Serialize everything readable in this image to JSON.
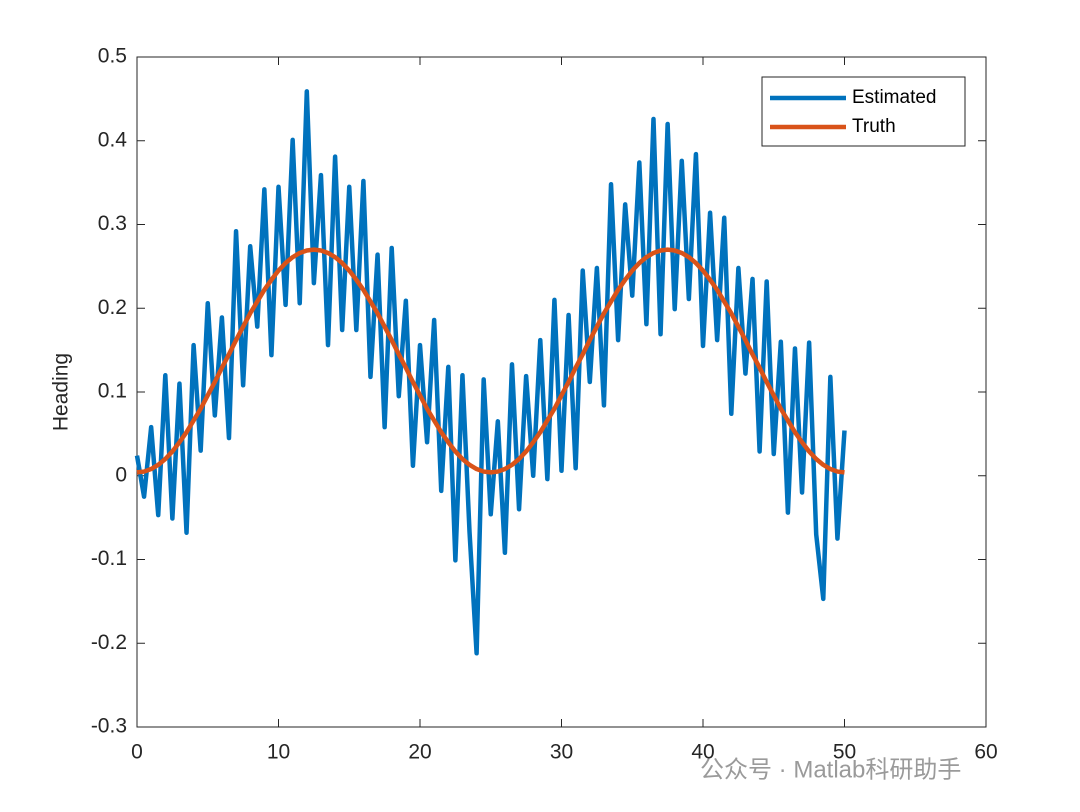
{
  "chart_data": {
    "type": "line",
    "y_label": "Heading",
    "watermark": "公众号 · Matlab科研助手",
    "x": [
      0,
      0.5,
      1,
      1.5,
      2,
      2.5,
      3,
      3.5,
      4,
      4.5,
      5,
      5.5,
      6,
      6.5,
      7,
      7.5,
      8,
      8.5,
      9,
      9.5,
      10,
      10.5,
      11,
      11.5,
      12,
      12.5,
      13,
      13.5,
      14,
      14.5,
      15,
      15.5,
      16,
      16.5,
      17,
      17.5,
      18,
      18.5,
      19,
      19.5,
      20,
      20.5,
      21,
      21.5,
      22,
      22.5,
      23,
      23.5,
      24,
      24.5,
      25,
      25.5,
      26,
      26.5,
      27,
      27.5,
      28,
      28.5,
      29,
      29.5,
      30,
      30.5,
      31,
      31.5,
      32,
      32.5,
      33,
      33.5,
      34,
      34.5,
      35,
      35.5,
      36,
      36.5,
      37,
      37.5,
      38,
      38.5,
      39,
      39.5,
      40,
      40.5,
      41,
      41.5,
      42,
      42.5,
      43,
      43.5,
      44,
      44.5,
      45,
      45.5,
      46,
      46.5,
      47,
      47.5,
      48,
      48.5,
      49,
      49.5,
      50
    ],
    "series": [
      {
        "name": "Estimated",
        "color": "#0072BD",
        "values": [
          0.024,
          -0.025,
          0.058,
          -0.047,
          0.12,
          -0.051,
          0.11,
          -0.068,
          0.156,
          0.03,
          0.206,
          0.072,
          0.189,
          0.045,
          0.292,
          0.108,
          0.274,
          0.178,
          0.342,
          0.144,
          0.345,
          0.204,
          0.401,
          0.206,
          0.459,
          0.23,
          0.359,
          0.156,
          0.381,
          0.174,
          0.345,
          0.174,
          0.352,
          0.118,
          0.264,
          0.058,
          0.272,
          0.095,
          0.209,
          0.012,
          0.156,
          0.04,
          0.186,
          -0.018,
          0.13,
          -0.101,
          0.12,
          -0.067,
          -0.212,
          0.115,
          -0.046,
          0.065,
          -0.092,
          0.133,
          -0.04,
          0.119,
          0,
          0.162,
          -0.004,
          0.21,
          0.006,
          0.192,
          0.009,
          0.245,
          0.112,
          0.248,
          0.084,
          0.348,
          0.162,
          0.324,
          0.215,
          0.374,
          0.181,
          0.426,
          0.169,
          0.42,
          0.199,
          0.376,
          0.211,
          0.384,
          0.155,
          0.314,
          0.162,
          0.308,
          0.074,
          0.248,
          0.122,
          0.235,
          0.029,
          0.232,
          0.026,
          0.16,
          -0.044,
          0.152,
          -0.02,
          0.159,
          -0.07,
          -0.147,
          0.118,
          -0.075,
          0.054
        ]
      },
      {
        "name": "Truth",
        "color": "#D95319",
        "values": [
          0.004,
          0.005,
          0.008,
          0.013,
          0.02,
          0.029,
          0.04,
          0.052,
          0.066,
          0.08,
          0.096,
          0.112,
          0.129,
          0.145,
          0.162,
          0.178,
          0.194,
          0.208,
          0.222,
          0.234,
          0.245,
          0.254,
          0.261,
          0.266,
          0.269,
          0.27,
          0.269,
          0.266,
          0.261,
          0.254,
          0.245,
          0.234,
          0.222,
          0.208,
          0.194,
          0.178,
          0.162,
          0.145,
          0.129,
          0.112,
          0.096,
          0.08,
          0.066,
          0.052,
          0.04,
          0.029,
          0.02,
          0.013,
          0.008,
          0.005,
          0.004,
          0.005,
          0.008,
          0.013,
          0.02,
          0.029,
          0.04,
          0.052,
          0.066,
          0.08,
          0.096,
          0.112,
          0.129,
          0.145,
          0.162,
          0.178,
          0.194,
          0.208,
          0.222,
          0.234,
          0.245,
          0.254,
          0.261,
          0.266,
          0.269,
          0.27,
          0.269,
          0.266,
          0.261,
          0.254,
          0.245,
          0.234,
          0.222,
          0.208,
          0.194,
          0.178,
          0.162,
          0.145,
          0.129,
          0.112,
          0.096,
          0.08,
          0.066,
          0.052,
          0.04,
          0.029,
          0.02,
          0.013,
          0.008,
          0.005,
          0.004
        ]
      }
    ],
    "xlim": [
      0,
      60
    ],
    "xticks": [
      0,
      10,
      20,
      30,
      40,
      50,
      60
    ],
    "ylim": [
      -0.3,
      0.5
    ],
    "yticks": [
      -0.3,
      -0.2,
      -0.1,
      0,
      0.1,
      0.2,
      0.3,
      0.4,
      0.5
    ],
    "legend": "top-right",
    "grid": false
  }
}
